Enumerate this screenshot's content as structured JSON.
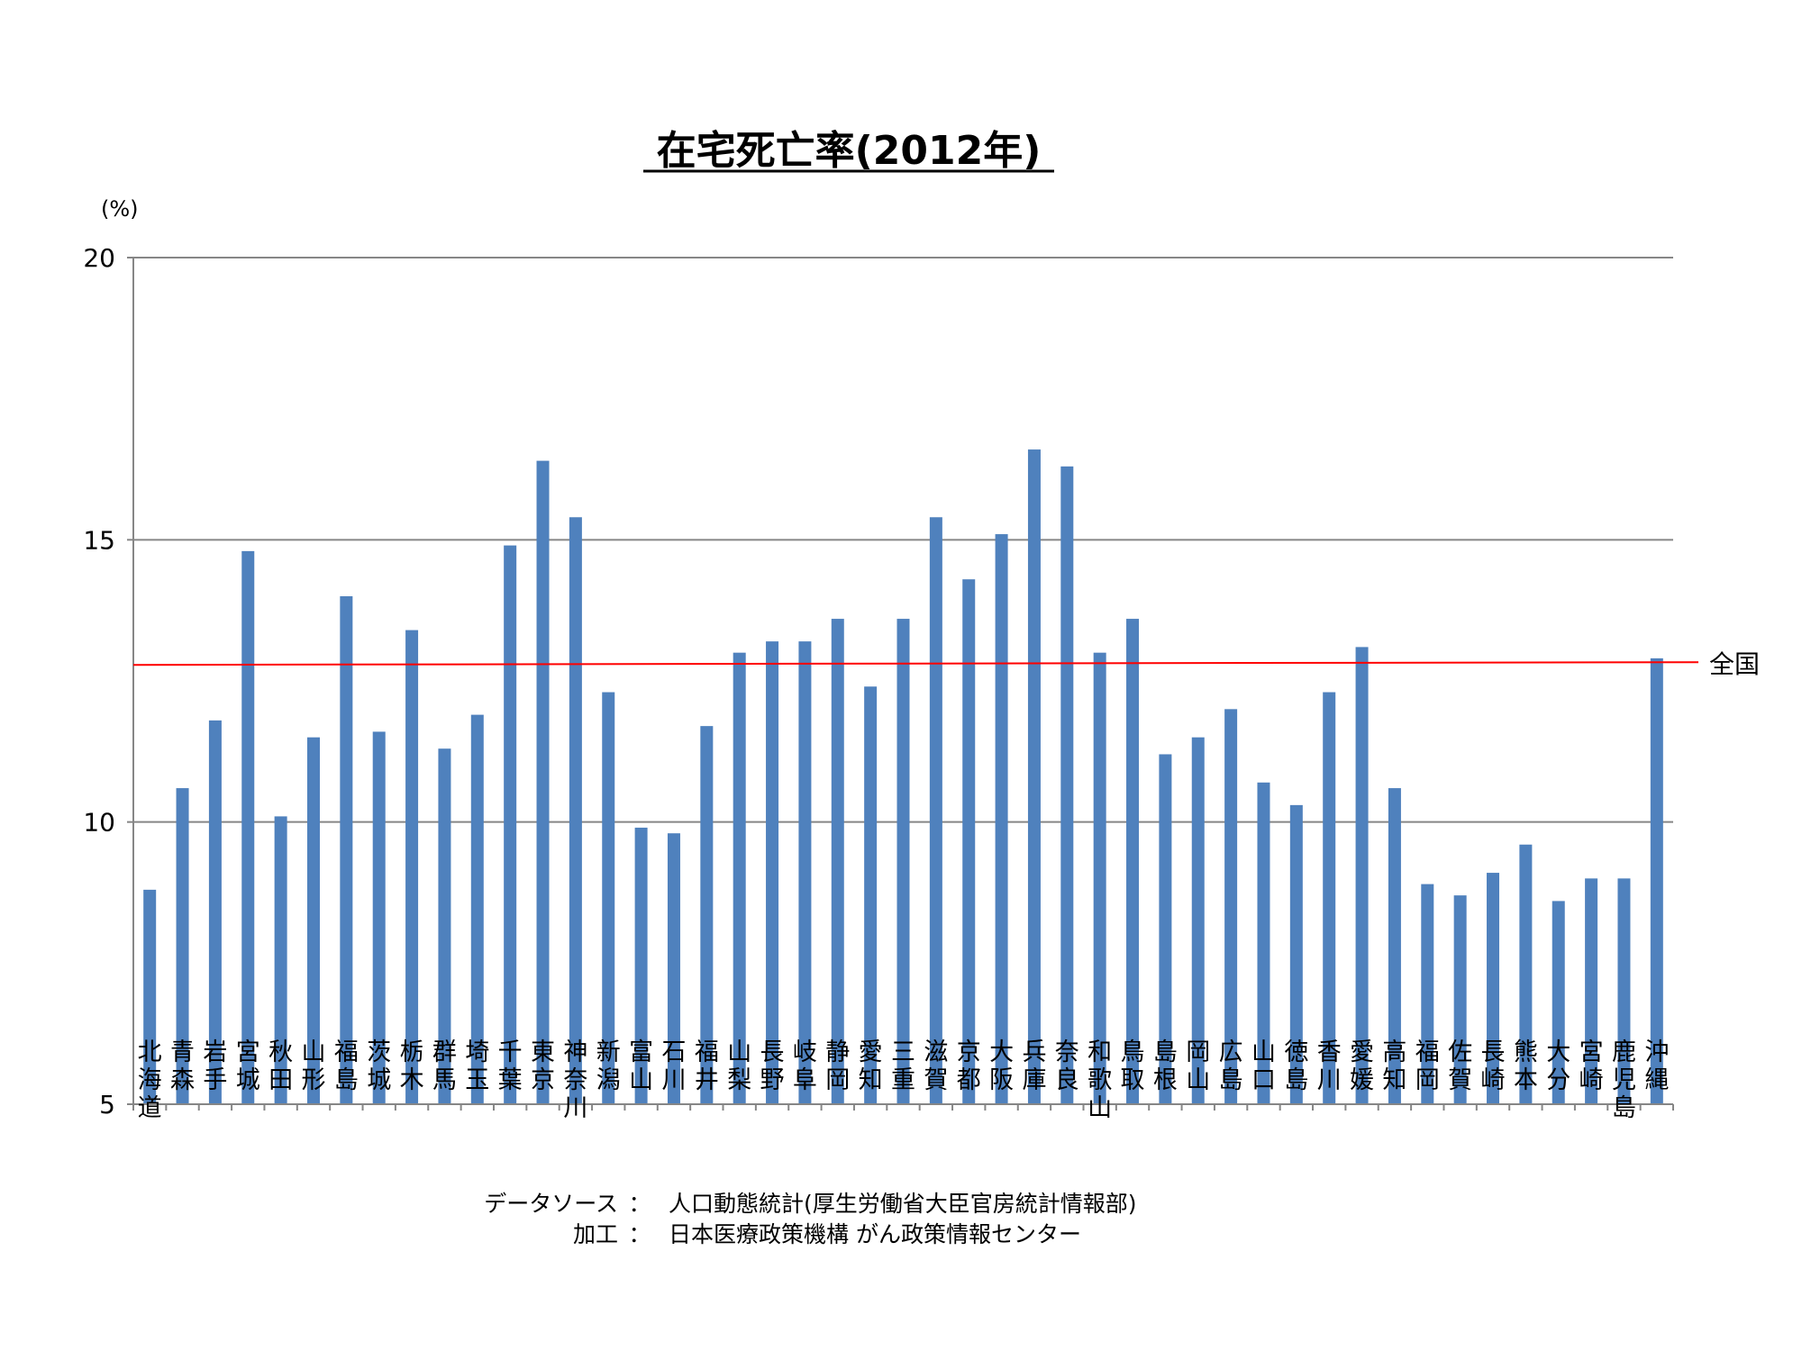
{
  "chart_data": {
    "type": "bar",
    "title": "在宅死亡率(2012年)",
    "ylabel": "(%)",
    "xlabel": "",
    "ylim": [
      5,
      20
    ],
    "yticks": [
      5,
      10,
      15,
      20
    ],
    "grid": true,
    "bar_color": "#4F81BD",
    "categories": [
      "北海道",
      "青森",
      "岩手",
      "宮城",
      "秋田",
      "山形",
      "福島",
      "茨城",
      "栃木",
      "群馬",
      "埼玉",
      "千葉",
      "東京",
      "神奈川",
      "新潟",
      "富山",
      "石川",
      "福井",
      "山梨",
      "長野",
      "岐阜",
      "静岡",
      "愛知",
      "三重",
      "滋賀",
      "京都",
      "大阪",
      "兵庫",
      "奈良",
      "和歌山",
      "鳥取",
      "島根",
      "岡山",
      "広島",
      "山口",
      "徳島",
      "香川",
      "愛媛",
      "高知",
      "福岡",
      "佐賀",
      "長崎",
      "熊本",
      "大分",
      "宮崎",
      "鹿児島",
      "沖縄"
    ],
    "values": [
      8.8,
      10.6,
      11.8,
      14.8,
      10.1,
      11.5,
      14.0,
      11.6,
      13.4,
      11.3,
      11.9,
      14.9,
      16.4,
      15.4,
      12.3,
      9.9,
      9.8,
      11.7,
      13.0,
      13.2,
      13.2,
      13.6,
      12.4,
      13.6,
      15.4,
      14.3,
      15.1,
      16.6,
      16.3,
      13.0,
      13.6,
      11.2,
      11.5,
      12.0,
      10.7,
      10.3,
      12.3,
      13.1,
      10.6,
      8.9,
      8.7,
      9.1,
      9.6,
      8.6,
      9.0,
      9.0,
      12.9
    ],
    "reference_line": {
      "label": "全国",
      "value": 12.8,
      "color": "#FF0000"
    }
  },
  "footer": {
    "source_label": "データソース",
    "source_sep": "：",
    "source_text": "人口動態統計(厚生労働省大臣官房統計情報部)",
    "process_label": "加工",
    "process_sep": "：",
    "process_text": "日本医療政策機構 がん政策情報センター"
  }
}
